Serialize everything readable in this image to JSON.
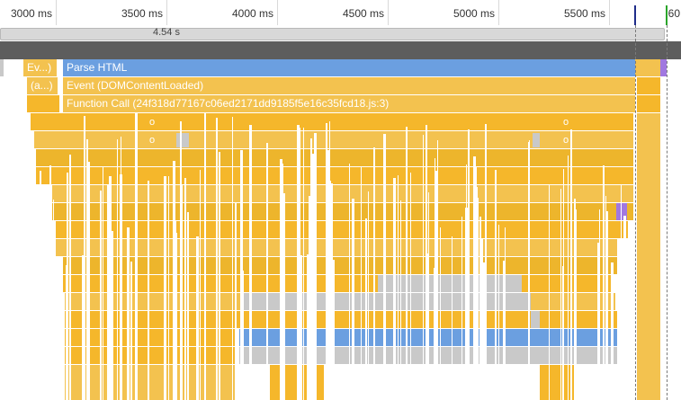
{
  "ruler": {
    "ticks": [
      "3000 ms",
      "3500 ms",
      "4000 ms",
      "4500 ms",
      "5000 ms",
      "5500 ms"
    ],
    "edge_label": "60"
  },
  "duration": {
    "label": "4.54 s"
  },
  "flame": {
    "rows": [
      {
        "short": "Ev...)",
        "label": "Parse HTML"
      },
      {
        "short": "(a...)",
        "label": "Event (DOMContentLoaded)"
      },
      {
        "short": "",
        "label": "Function Call (24f318d77167c06ed2171dd9185f5e16c35fcd18.js:3)"
      }
    ],
    "markers": [
      "o",
      "o",
      "o",
      "o"
    ]
  },
  "colors": {
    "parse_html": "#6b9fe0",
    "scripting": "#f3c24f",
    "scripting_dark": "#f5b72b",
    "other": "#c9c9c9",
    "rendering": "#a178e0",
    "marker_navy": "#1f2c8a",
    "marker_green": "#2aa52a"
  }
}
